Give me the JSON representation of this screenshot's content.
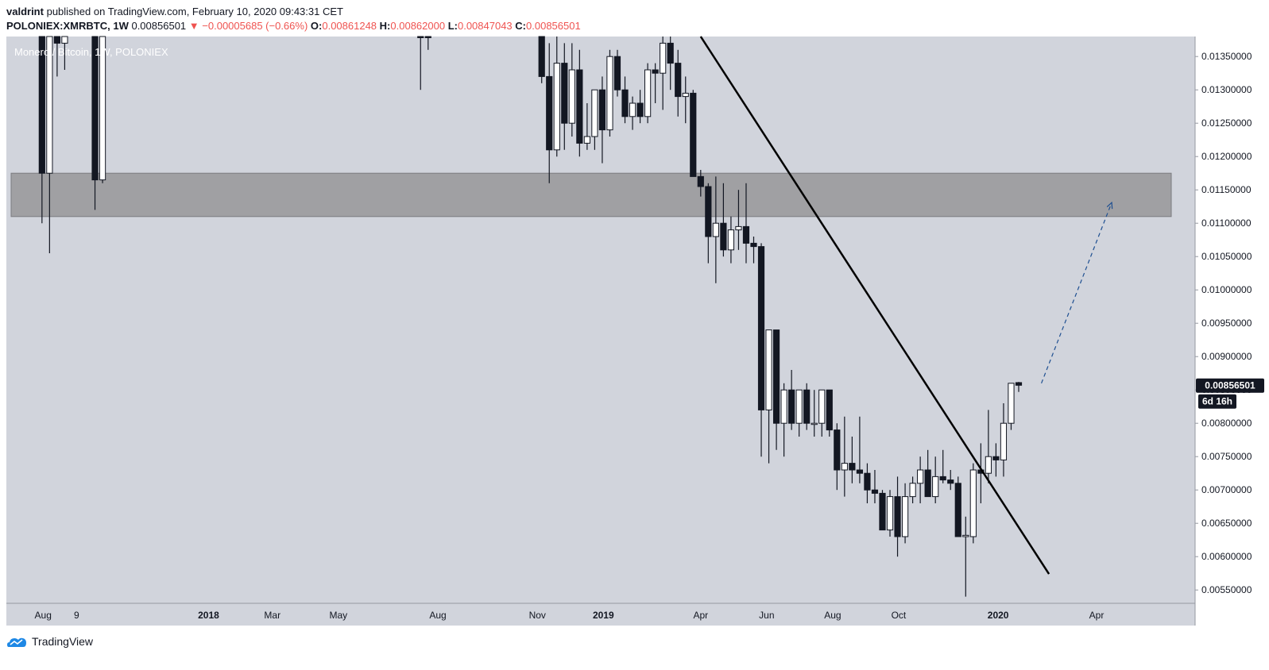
{
  "header": {
    "author": "valdrint",
    "published_text": "published on TradingView.com, February 10, 2020 09:43:31 CET",
    "symbol": "POLONIEX:XMRBTC, 1W",
    "last": "0.00856501",
    "change_arrow": "▼",
    "change": "−0.00005685 (−0.66%)",
    "o_label": "O:",
    "o_value": "0.00861248",
    "h_label": "H:",
    "h_value": "0.00862000",
    "l_label": "L:",
    "l_value": "0.00847043",
    "c_label": "C:",
    "c_value": "0.00856501"
  },
  "footer": {
    "brand": "TradingView",
    "logo_icon": "tradingview-logo-icon"
  },
  "colors": {
    "plot_bg": "#d1d4dc",
    "zone": "#a0a0a3",
    "candle_up": "#ffffff",
    "candle_down": "#131722",
    "trendline": "#000000",
    "projection": "#1e4f91",
    "price_label_bg": "#131722"
  },
  "chart_data": {
    "type": "candlestick",
    "title": "Monero / Bitcoin, 1W, POLONIEX",
    "ylim": [
      0.0053,
      0.0138
    ],
    "y_ticks": [
      "0.00550000",
      "0.00600000",
      "0.00650000",
      "0.00700000",
      "0.00750000",
      "0.00800000",
      "0.00850000",
      "0.00900000",
      "0.00950000",
      "0.01000000",
      "0.01050000",
      "0.01100000",
      "0.01150000",
      "0.01200000",
      "0.01250000",
      "0.01300000",
      "0.01350000"
    ],
    "x_ticks": [
      {
        "label": "Aug",
        "date": "2017-08-01"
      },
      {
        "label": "9",
        "date": "2017-09-01"
      },
      {
        "label": "2018",
        "date": "2018-01-01"
      },
      {
        "label": "Mar",
        "date": "2018-03-01"
      },
      {
        "label": "May",
        "date": "2018-05-01"
      },
      {
        "label": "Aug",
        "date": "2018-08-01"
      },
      {
        "label": "Nov",
        "date": "2018-11-01"
      },
      {
        "label": "2019",
        "date": "2019-01-01"
      },
      {
        "label": "Apr",
        "date": "2019-04-01"
      },
      {
        "label": "Jun",
        "date": "2019-06-01"
      },
      {
        "label": "Aug",
        "date": "2019-08-01"
      },
      {
        "label": "Oct",
        "date": "2019-10-01"
      },
      {
        "label": "2020",
        "date": "2020-01-01"
      },
      {
        "label": "Apr",
        "date": "2020-04-01"
      }
    ],
    "resistance_zone": [
      0.0111,
      0.01175
    ],
    "last_price_label": "0.00856501",
    "countdown_label": "6d 16h",
    "trendline": [
      {
        "date": "2019-04-01",
        "price": 0.0138
      },
      {
        "date": "2020-02-17",
        "price": 0.00574
      }
    ],
    "projection": [
      {
        "date": "2020-02-10",
        "price": 0.0086
      },
      {
        "date": "2020-04-15",
        "price": 0.01131
      }
    ],
    "candles": [
      [
        "2017-07-31",
        0.0155,
        0.0158,
        0.011,
        0.01175
      ],
      [
        "2017-08-07",
        0.01175,
        0.0142,
        0.01055,
        0.0142
      ],
      [
        "2017-08-14",
        0.0142,
        0.0148,
        0.0132,
        0.0137
      ],
      [
        "2017-08-21",
        0.0137,
        0.0145,
        0.0133,
        0.0145
      ],
      [
        "2017-09-18",
        0.0155,
        0.016,
        0.0112,
        0.01165
      ],
      [
        "2017-09-25",
        0.01165,
        0.0158,
        0.0116,
        0.0158
      ],
      [
        "2018-07-16",
        0.0155,
        0.0162,
        0.013,
        0.0145
      ],
      [
        "2018-07-23",
        0.0145,
        0.0152,
        0.0136,
        0.0143
      ],
      [
        "2018-11-05",
        0.0145,
        0.015,
        0.0131,
        0.0132
      ],
      [
        "2018-11-12",
        0.0132,
        0.0137,
        0.0116,
        0.0121
      ],
      [
        "2018-11-19",
        0.0121,
        0.0138,
        0.012,
        0.0134
      ],
      [
        "2018-11-26",
        0.0134,
        0.0137,
        0.0121,
        0.0125
      ],
      [
        "2018-12-03",
        0.0125,
        0.0137,
        0.0123,
        0.0133
      ],
      [
        "2018-12-10",
        0.0133,
        0.0136,
        0.012,
        0.0122
      ],
      [
        "2018-12-17",
        0.0122,
        0.0128,
        0.0121,
        0.0123
      ],
      [
        "2018-12-24",
        0.0123,
        0.013,
        0.0121,
        0.013
      ],
      [
        "2018-12-31",
        0.013,
        0.0132,
        0.0119,
        0.0124
      ],
      [
        "2019-01-07",
        0.0124,
        0.0136,
        0.0123,
        0.0135
      ],
      [
        "2019-01-14",
        0.0135,
        0.0136,
        0.0129,
        0.013
      ],
      [
        "2019-01-21",
        0.013,
        0.0132,
        0.0125,
        0.0126
      ],
      [
        "2019-01-28",
        0.0126,
        0.0129,
        0.0124,
        0.0128
      ],
      [
        "2019-02-04",
        0.0128,
        0.013,
        0.0125,
        0.0126
      ],
      [
        "2019-02-11",
        0.0126,
        0.0134,
        0.0125,
        0.0133
      ],
      [
        "2019-02-18",
        0.0133,
        0.0134,
        0.0128,
        0.01325
      ],
      [
        "2019-02-25",
        0.01325,
        0.0138,
        0.0127,
        0.0137
      ],
      [
        "2019-03-04",
        0.0137,
        0.0139,
        0.013,
        0.0134
      ],
      [
        "2019-03-11",
        0.0134,
        0.0136,
        0.0126,
        0.0129
      ],
      [
        "2019-03-18",
        0.0129,
        0.0132,
        0.0125,
        0.01295
      ],
      [
        "2019-03-25",
        0.01295,
        0.013,
        0.0117,
        0.0117
      ],
      [
        "2019-04-01",
        0.0117,
        0.0118,
        0.0114,
        0.01155
      ],
      [
        "2019-04-08",
        0.01155,
        0.0116,
        0.0104,
        0.0108
      ],
      [
        "2019-04-15",
        0.0108,
        0.0117,
        0.0101,
        0.011
      ],
      [
        "2019-04-22",
        0.011,
        0.0116,
        0.0105,
        0.0106
      ],
      [
        "2019-04-29",
        0.0106,
        0.0111,
        0.0104,
        0.0109
      ],
      [
        "2019-05-06",
        0.0109,
        0.0115,
        0.0106,
        0.01095
      ],
      [
        "2019-05-13",
        0.01095,
        0.0116,
        0.0104,
        0.0107
      ],
      [
        "2019-05-20",
        0.0107,
        0.0108,
        0.0104,
        0.01065
      ],
      [
        "2019-05-27",
        0.01065,
        0.0107,
        0.0075,
        0.0082
      ],
      [
        "2019-06-03",
        0.0082,
        0.0094,
        0.0074,
        0.0094
      ],
      [
        "2019-06-10",
        0.0094,
        0.0094,
        0.0076,
        0.008
      ],
      [
        "2019-06-17",
        0.008,
        0.0086,
        0.0075,
        0.0085
      ],
      [
        "2019-06-24",
        0.0085,
        0.0088,
        0.0079,
        0.008
      ],
      [
        "2019-07-01",
        0.008,
        0.0085,
        0.0078,
        0.0085
      ],
      [
        "2019-07-08",
        0.0085,
        0.0086,
        0.0079,
        0.008
      ],
      [
        "2019-07-15",
        0.008,
        0.0085,
        0.0078,
        0.008
      ],
      [
        "2019-07-22",
        0.008,
        0.0085,
        0.0078,
        0.0085
      ],
      [
        "2019-07-29",
        0.0085,
        0.0085,
        0.0078,
        0.0079
      ],
      [
        "2019-08-05",
        0.0079,
        0.008,
        0.007,
        0.0073
      ],
      [
        "2019-08-12",
        0.0073,
        0.0081,
        0.0069,
        0.0074
      ],
      [
        "2019-08-19",
        0.0074,
        0.0078,
        0.0071,
        0.0073
      ],
      [
        "2019-08-26",
        0.0073,
        0.0081,
        0.0071,
        0.00725
      ],
      [
        "2019-09-02",
        0.00725,
        0.0074,
        0.0068,
        0.007
      ],
      [
        "2019-09-09",
        0.007,
        0.0073,
        0.0068,
        0.00695
      ],
      [
        "2019-09-16",
        0.00695,
        0.007,
        0.0064,
        0.0064
      ],
      [
        "2019-09-23",
        0.0064,
        0.007,
        0.0063,
        0.0069
      ],
      [
        "2019-09-30",
        0.0069,
        0.0072,
        0.006,
        0.0063
      ],
      [
        "2019-10-07",
        0.0063,
        0.0071,
        0.0062,
        0.0069
      ],
      [
        "2019-10-14",
        0.0069,
        0.0072,
        0.0068,
        0.0071
      ],
      [
        "2019-10-21",
        0.0071,
        0.0075,
        0.0068,
        0.0073
      ],
      [
        "2019-10-28",
        0.0073,
        0.0076,
        0.0069,
        0.0069
      ],
      [
        "2019-11-04",
        0.0069,
        0.0075,
        0.0068,
        0.0072
      ],
      [
        "2019-11-11",
        0.0072,
        0.0076,
        0.0071,
        0.00715
      ],
      [
        "2019-11-18",
        0.00715,
        0.0073,
        0.007,
        0.0071
      ],
      [
        "2019-11-25",
        0.0071,
        0.0072,
        0.0063,
        0.0063
      ],
      [
        "2019-12-02",
        0.0063,
        0.0066,
        0.0054,
        0.00632
      ],
      [
        "2019-12-09",
        0.0063,
        0.0074,
        0.0062,
        0.0073
      ],
      [
        "2019-12-16",
        0.0073,
        0.0077,
        0.0068,
        0.00725
      ],
      [
        "2019-12-23",
        0.00725,
        0.0082,
        0.0071,
        0.0075
      ],
      [
        "2019-12-30",
        0.0075,
        0.0077,
        0.0072,
        0.00745
      ],
      [
        "2020-01-06",
        0.00745,
        0.0083,
        0.0072,
        0.008
      ],
      [
        "2020-01-13",
        0.008,
        0.0086,
        0.0079,
        0.0086
      ],
      [
        "2020-01-20",
        0.00861,
        0.00862,
        0.00847,
        0.00857
      ]
    ]
  }
}
